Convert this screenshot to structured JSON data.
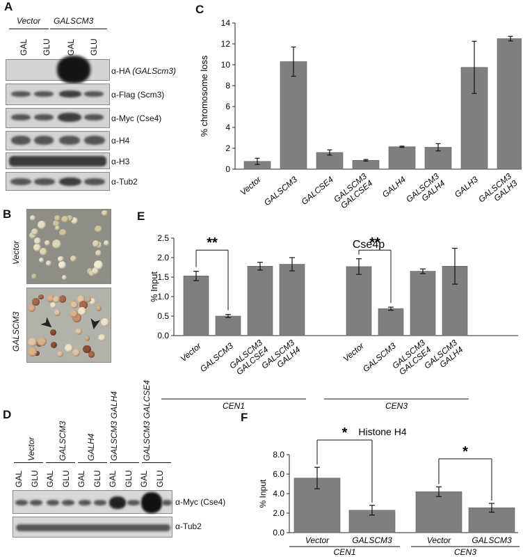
{
  "panel_A": {
    "letter": "A",
    "groups": [
      "Vector",
      "GALSCM3"
    ],
    "lanes": [
      "GAL",
      "GLU",
      "GAL",
      "GLU"
    ],
    "blots": [
      {
        "greek": "α-",
        "name": "HA",
        "paren": "(GALScm3)"
      },
      {
        "greek": "α-",
        "name": "Flag",
        "paren": "(Scm3)"
      },
      {
        "greek": "α-",
        "name": "Myc",
        "paren": "(Cse4)"
      },
      {
        "greek": "α-",
        "name": "H4",
        "paren": ""
      },
      {
        "greek": "α-",
        "name": "H3",
        "paren": ""
      },
      {
        "greek": "α-",
        "name": "Tub2",
        "paren": ""
      }
    ]
  },
  "panel_B": {
    "letter": "B",
    "labels": [
      "Vector",
      "GALSCM3"
    ]
  },
  "panel_D": {
    "letter": "D",
    "groups": [
      "Vector",
      "GALSCM3",
      "GALH4",
      "GALSCM3 GALH4",
      "GALSCM3 GALCSE4"
    ],
    "lanes": [
      "GAL",
      "GLU",
      "GAL",
      "GLU",
      "GAL",
      "GLU",
      "GAL",
      "GLU",
      "GAL",
      "GLU"
    ],
    "blots": [
      {
        "greek": "α-",
        "name": "Myc (Cse4)"
      },
      {
        "greek": "α-",
        "name": "Tub2"
      }
    ]
  },
  "chart_data": [
    {
      "panel": "C",
      "type": "bar",
      "ylabel": "% chromosome loss",
      "ylim": [
        0,
        14
      ],
      "yticks": [
        0,
        2,
        4,
        6,
        8,
        10,
        12,
        14
      ],
      "categories": [
        "Vector",
        "GALSCM3",
        "GALCSE4",
        "GALSCM3\nGALCSE4",
        "GALH4",
        "GALSCM3\nGALH4",
        "GALH3",
        "GALSCM3\nGALH3"
      ],
      "values": [
        0.75,
        10.3,
        1.6,
        0.85,
        2.15,
        2.1,
        9.75,
        12.5
      ],
      "errors": [
        0.3,
        1.4,
        0.25,
        0.08,
        0.06,
        0.35,
        2.5,
        0.22
      ]
    },
    {
      "panel": "E",
      "type": "bar",
      "title": "Cse4p",
      "ylabel": "% Input",
      "ylim": [
        0,
        2.5
      ],
      "yticks": [
        "0.0",
        "0.5",
        "1.0",
        "1.5",
        "2.0",
        "2.5"
      ],
      "groups": [
        {
          "name": "CEN1",
          "categories": [
            "Vector",
            "GALSCM3",
            "GALSCM3\nGALCSE4",
            "GALSCM3\nGALH4"
          ],
          "values": [
            1.53,
            0.5,
            1.78,
            1.83
          ],
          "errors": [
            0.12,
            0.04,
            0.1,
            0.17
          ]
        },
        {
          "name": "CEN3",
          "categories": [
            "Vector",
            "GALSCM3",
            "GALSCM3\nGALCSE4",
            "GALSCM3\nGALH4"
          ],
          "values": [
            1.77,
            0.69,
            1.65,
            1.78
          ],
          "errors": [
            0.2,
            0.04,
            0.06,
            0.46
          ]
        }
      ],
      "significance": [
        "**",
        "**"
      ]
    },
    {
      "panel": "F",
      "type": "bar",
      "title": "Histone H4",
      "ylabel": "% Input",
      "ylim": [
        0,
        8
      ],
      "yticks": [
        "0.0",
        "2.0",
        "4.0",
        "6.0",
        "8.0"
      ],
      "groups": [
        {
          "name": "CEN1",
          "categories": [
            "Vector",
            "GALSCM3"
          ],
          "values": [
            5.6,
            2.3
          ],
          "errors": [
            1.1,
            0.5
          ]
        },
        {
          "name": "CEN3",
          "categories": [
            "Vector",
            "GALSCM3"
          ],
          "values": [
            4.2,
            2.55
          ],
          "errors": [
            0.5,
            0.45
          ]
        }
      ],
      "significance": [
        "*",
        "*"
      ]
    }
  ],
  "colors": {
    "bar": "#7f7f7f",
    "bar_edge": "#5e5e5e",
    "axis": "#222222"
  }
}
